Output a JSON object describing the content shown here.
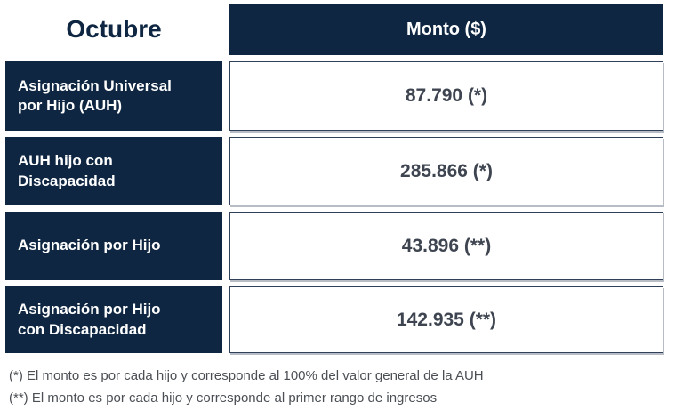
{
  "page": {
    "month_title": "Octubre",
    "amount_header": "Monto ($)"
  },
  "table": {
    "rows": [
      {
        "label": "Asignación Universal\npor Hijo (AUH)",
        "amount": "87.790 (*)"
      },
      {
        "label": "AUH hijo con\nDiscapacidad",
        "amount": "285.866 (*)"
      },
      {
        "label": "Asignación por Hijo",
        "amount": "43.896 (**)"
      },
      {
        "label": "Asignación por Hijo\ncon Discapacidad",
        "amount": "142.935 (**)"
      }
    ]
  },
  "footnotes": [
    "(*) El monto es por cada hijo y corresponde al 100% del valor general de la AUH",
    "(**) El monto es por cada hijo y corresponde al primer rango de ingresos"
  ],
  "colors": {
    "navy": "#0e2642",
    "amount_text": "#3e4550",
    "footnote_text": "#4b4f54",
    "cell_border": "#31405a"
  },
  "chart_data": {
    "type": "table",
    "title": "Octubre",
    "columns": [
      "Octubre",
      "Monto ($)"
    ],
    "rows": [
      [
        "Asignación Universal por Hijo (AUH)",
        "87.790 (*)"
      ],
      [
        "AUH hijo con Discapacidad",
        "285.866 (*)"
      ],
      [
        "Asignación por Hijo",
        "43.896 (**)"
      ],
      [
        "Asignación por Hijo con Discapacidad",
        "142.935 (**)"
      ]
    ],
    "values": [
      87790,
      285866,
      43896,
      142935
    ],
    "footnotes": [
      "(*) El monto es por cada hijo y corresponde al 100% del valor general de la AUH",
      "(**) El monto es por cada hijo y corresponde al primer rango de ingresos"
    ]
  }
}
